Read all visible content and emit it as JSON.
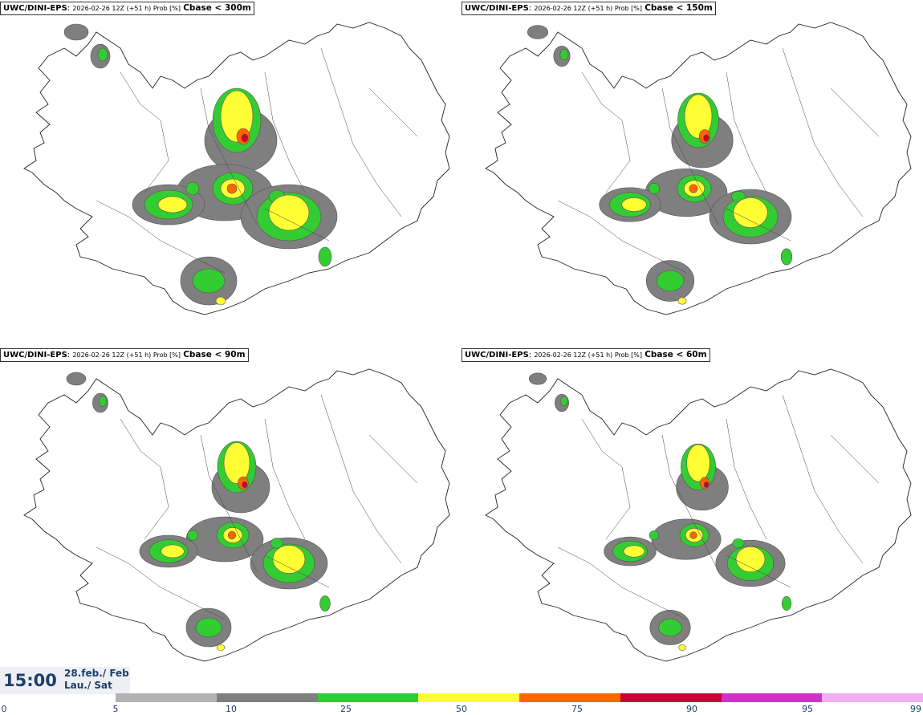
{
  "panels": [
    {
      "model": "UWC/DINI-EPS",
      "meta": "2026-02-26 12Z (+51 h) Prob [%]",
      "threshold": "Cbase < 300m"
    },
    {
      "model": "UWC/DINI-EPS",
      "meta": "2026-02-26 12Z (+51 h) Prob [%]",
      "threshold": "Cbase < 150m"
    },
    {
      "model": "UWC/DINI-EPS",
      "meta": "2026-02-26 12Z (+51 h) Prob [%]",
      "threshold": "Cbase < 90m"
    },
    {
      "model": "UWC/DINI-EPS",
      "meta": "2026-02-26 12Z (+51 h) Prob [%]",
      "threshold": "Cbase < 60m"
    }
  ],
  "valid_time": {
    "time": "15:00",
    "date_line1": "28.feb./ Feb",
    "date_line2": "Lau./ Sat"
  },
  "colorbar": {
    "ticks": [
      "0",
      "5",
      "10",
      "25",
      "50",
      "75",
      "90",
      "95",
      "99"
    ],
    "colors": [
      "#b3b3b3",
      "#7f7f7f",
      "#33cc33",
      "#ffff33",
      "#ff6600",
      "#cc0033",
      "#cc33cc",
      "#f0b0f0"
    ]
  }
}
